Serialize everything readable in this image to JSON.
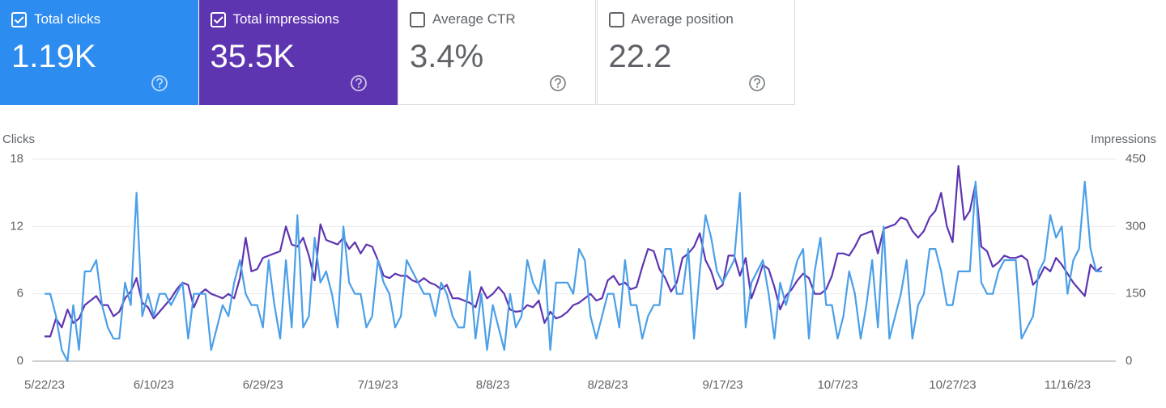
{
  "cards": [
    {
      "label": "Total clicks",
      "value": "1.19K",
      "checked": true,
      "color": "#2d8cf0"
    },
    {
      "label": "Total impressions",
      "value": "35.5K",
      "checked": true,
      "color": "#5e35b1"
    },
    {
      "label": "Average CTR",
      "value": "3.4%",
      "checked": false,
      "color": "#ffffff"
    },
    {
      "label": "Average position",
      "value": "22.2",
      "checked": false,
      "color": "#ffffff"
    }
  ],
  "chart_data": {
    "type": "line",
    "y_label": "Clicks",
    "y2_label": "Impressions",
    "categories": [
      "5/22/23",
      null,
      null,
      null,
      null,
      null,
      null,
      null,
      null,
      null,
      null,
      null,
      null,
      null,
      null,
      null,
      null,
      null,
      null,
      "6/10/23",
      null,
      null,
      null,
      null,
      null,
      null,
      null,
      null,
      null,
      null,
      null,
      null,
      null,
      null,
      null,
      null,
      null,
      null,
      "6/29/23",
      null,
      null,
      null,
      null,
      null,
      null,
      null,
      null,
      null,
      null,
      null,
      null,
      null,
      null,
      null,
      null,
      null,
      null,
      null,
      "7/19/23",
      null,
      null,
      null,
      null,
      null,
      null,
      null,
      null,
      null,
      null,
      null,
      null,
      null,
      null,
      null,
      null,
      null,
      null,
      null,
      "8/8/23",
      null,
      null,
      null,
      null,
      null,
      null,
      null,
      null,
      null,
      null,
      null,
      null,
      null,
      null,
      null,
      null,
      null,
      null,
      null,
      "8/28/23",
      null,
      null,
      null,
      null,
      null,
      null,
      null,
      null,
      null,
      null,
      null,
      null,
      null,
      null,
      null,
      null,
      null,
      null,
      null,
      "9/17/23",
      null,
      null,
      null,
      null,
      null,
      null,
      null,
      null,
      null,
      null,
      null,
      null,
      null,
      null,
      null,
      null,
      null,
      null,
      null,
      "10/7/23",
      null,
      null,
      null,
      null,
      null,
      null,
      null,
      null,
      null,
      null,
      null,
      null,
      null,
      null,
      null,
      null,
      null,
      null,
      null,
      "10/27/23",
      null,
      null,
      null,
      null,
      null,
      null,
      null,
      null,
      null,
      null,
      null,
      null,
      null,
      null,
      null,
      null,
      null,
      null,
      null,
      "11/16/23",
      null,
      null,
      null,
      null,
      null,
      null
    ],
    "series": [
      {
        "name": "Total impressions",
        "color": "#5e35b1",
        "axis": "y2",
        "values": [
          55,
          55,
          95,
          75,
          115,
          85,
          95,
          125,
          135,
          145,
          125,
          125,
          100,
          110,
          140,
          155,
          185,
          130,
          120,
          95,
          110,
          125,
          140,
          160,
          175,
          170,
          120,
          150,
          160,
          150,
          145,
          140,
          150,
          140,
          185,
          275,
          200,
          205,
          230,
          235,
          240,
          245,
          300,
          260,
          255,
          275,
          235,
          180,
          305,
          270,
          265,
          260,
          275,
          250,
          265,
          240,
          260,
          255,
          225,
          190,
          185,
          195,
          190,
          190,
          180,
          175,
          185,
          175,
          170,
          160,
          170,
          140,
          140,
          135,
          130,
          120,
          165,
          140,
          150,
          165,
          150,
          115,
          110,
          112,
          125,
          120,
          135,
          85,
          110,
          95,
          100,
          110,
          125,
          130,
          140,
          150,
          135,
          140,
          180,
          190,
          170,
          175,
          160,
          165,
          210,
          250,
          245,
          205,
          185,
          155,
          175,
          230,
          240,
          255,
          285,
          225,
          200,
          160,
          170,
          235,
          235,
          190,
          230,
          140,
          175,
          215,
          205,
          165,
          115,
          145,
          160,
          180,
          195,
          185,
          150,
          150,
          160,
          190,
          240,
          240,
          235,
          255,
          280,
          285,
          290,
          240,
          295,
          300,
          305,
          320,
          315,
          290,
          275,
          290,
          320,
          335,
          375,
          300,
          265,
          435,
          315,
          335,
          395,
          255,
          245,
          210,
          220,
          235,
          230,
          230,
          235,
          225,
          170,
          185,
          210,
          200,
          230,
          215,
          195,
          175,
          160,
          145,
          215,
          200,
          210
        ]
      },
      {
        "name": "Total clicks",
        "color": "#4a9fe8",
        "axis": "y",
        "values": [
          6,
          6,
          4,
          1,
          0,
          5,
          1,
          8,
          8,
          9,
          5,
          3,
          2,
          2,
          7,
          5,
          15,
          4,
          6,
          4,
          6,
          6,
          5,
          6,
          7,
          2,
          6,
          6,
          6,
          1,
          3,
          5,
          4,
          7,
          9,
          6,
          5,
          5,
          3,
          9,
          5,
          2,
          9,
          3,
          13,
          3,
          4,
          11,
          7,
          8,
          6,
          3,
          12,
          7,
          6,
          6,
          3,
          4,
          9,
          7,
          6,
          3,
          4,
          9,
          8,
          7,
          6,
          6,
          4,
          7,
          6,
          4,
          3,
          3,
          8,
          2,
          6,
          1,
          5,
          3,
          1,
          6,
          3,
          4,
          9,
          7,
          6,
          9,
          1,
          7,
          7,
          7,
          6,
          10,
          9,
          4,
          2,
          4,
          6,
          6,
          3,
          9,
          5,
          5,
          2,
          4,
          5,
          5,
          10,
          10,
          6,
          6,
          10,
          2,
          8,
          13,
          11,
          8,
          7,
          8,
          9,
          15,
          3,
          7,
          8,
          9,
          6,
          2,
          7,
          5,
          7,
          9,
          10,
          2,
          8,
          11,
          5,
          5,
          2,
          4,
          8,
          6,
          2,
          5,
          9,
          3,
          12,
          2,
          4,
          6,
          9,
          2,
          5,
          6,
          10,
          10,
          8,
          5,
          5,
          8,
          8,
          8,
          16,
          7,
          6,
          6,
          8,
          9,
          9,
          9,
          2,
          3,
          4,
          8,
          9,
          13,
          11,
          12,
          6,
          9,
          10,
          16,
          10,
          8,
          8
        ]
      }
    ],
    "ylim": [
      0,
      18
    ],
    "yticks": [
      0,
      6,
      12,
      18
    ],
    "y2lim": [
      0,
      450
    ],
    "y2ticks": [
      0,
      150,
      300,
      450
    ],
    "grid": true
  }
}
